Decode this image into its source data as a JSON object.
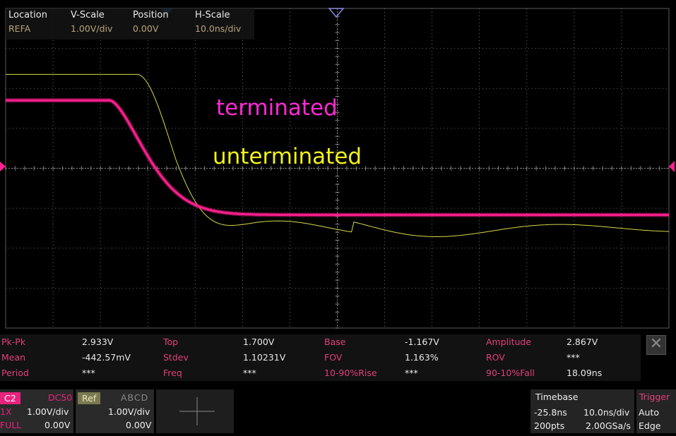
{
  "ref_info": {
    "headers": [
      "Location",
      "V-Scale",
      "Position",
      "H-Scale"
    ],
    "values": [
      "REFA",
      "1.00V/div",
      "0.00V",
      "10.0ns/div"
    ]
  },
  "annotations": {
    "terminated": "terminated",
    "unterminated": "unterminated"
  },
  "colors": {
    "terminated": "#ff1f8f",
    "unterminated": "#d8d84a",
    "label_terminated": "#ff2ad4",
    "label_unterminated": "#f2f21a",
    "grid": "#8a8a8a",
    "measure_label": "#e23f7a",
    "marker": "#ff1f8f"
  },
  "icons": {
    "trigger_marker": "triangle-down-icon",
    "level_marker": "triangle-side-icon",
    "close": "close-icon",
    "crosshair": "crosshair-icon"
  },
  "measurements": [
    [
      {
        "name": "Pk-Pk",
        "value": "2.933V"
      },
      {
        "name": "Top",
        "value": "1.700V"
      },
      {
        "name": "Base",
        "value": "-1.167V"
      },
      {
        "name": "Amplitude",
        "value": "2.867V"
      }
    ],
    [
      {
        "name": "Mean",
        "value": "-442.57mV"
      },
      {
        "name": "Stdev",
        "value": "1.10231V"
      },
      {
        "name": "FOV",
        "value": "1.163%"
      },
      {
        "name": "ROV",
        "value": "***"
      }
    ],
    [
      {
        "name": "Period",
        "value": "***"
      },
      {
        "name": "Freq",
        "value": "***"
      },
      {
        "name": "10-90%Rise",
        "value": "***"
      },
      {
        "name": "90-10%Fall",
        "value": "18.09ns"
      }
    ]
  ],
  "channel": {
    "name": "C2",
    "coupling": "DC50",
    "probe": "1X",
    "bw": "FULL",
    "scale": "1.00V/div",
    "offset": "0.00V"
  },
  "ref": {
    "label": "Ref",
    "slots": "ABCD",
    "scale": "1.00V/div",
    "offset": "0.00V"
  },
  "timebase": {
    "title": "Timebase",
    "delay": "-25.8ns",
    "scale": "10.0ns/div",
    "points": "200pts",
    "rate": "2.00GSa/s"
  },
  "trigger": {
    "title": "Trigger",
    "mode": "Auto",
    "type": "Edge"
  },
  "scope": {
    "divisions_x": 14,
    "divisions_y": 8,
    "time_per_div_ns": 10,
    "volts_per_div": 1.0
  }
}
